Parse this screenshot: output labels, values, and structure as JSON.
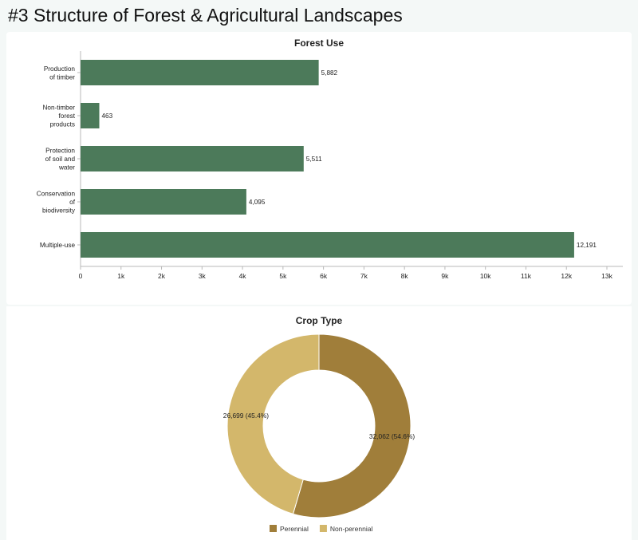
{
  "page": {
    "title": "#3 Structure of Forest & Agricultural Landscapes"
  },
  "colors": {
    "bar": "#4c7a5a",
    "perennial": "#a07e3a",
    "non_perennial": "#d3b76b",
    "axis": "#b8b8b8"
  },
  "chart_data": [
    {
      "type": "bar",
      "orientation": "horizontal",
      "title": "Forest Use",
      "categories": [
        [
          "Production",
          "of timber"
        ],
        [
          "Non-timber",
          "forest",
          "products"
        ],
        [
          "Protection",
          "of soil and",
          "water"
        ],
        [
          "Conservation",
          "of",
          "biodiversity"
        ],
        [
          "Multiple-use"
        ]
      ],
      "values": [
        5882,
        463,
        5511,
        4095,
        12191
      ],
      "value_labels": [
        "5,882",
        "463",
        "5,511",
        "4,095",
        "12,191"
      ],
      "xlim": [
        0,
        13000
      ],
      "ticks": [
        0,
        1000,
        2000,
        3000,
        4000,
        5000,
        6000,
        7000,
        8000,
        9000,
        10000,
        11000,
        12000,
        13000
      ],
      "tick_labels": [
        "0",
        "1k",
        "2k",
        "3k",
        "4k",
        "5k",
        "6k",
        "7k",
        "8k",
        "9k",
        "10k",
        "11k",
        "12k",
        "13k"
      ],
      "grid": false
    },
    {
      "type": "pie",
      "donut": true,
      "title": "Crop Type",
      "labels": [
        "Perennial",
        "Non-perennial"
      ],
      "values": [
        32062,
        26699
      ],
      "slice_labels": [
        "32,062 (54.6%)",
        "26,699 (45.4%)"
      ],
      "legend_position": "bottom"
    }
  ]
}
